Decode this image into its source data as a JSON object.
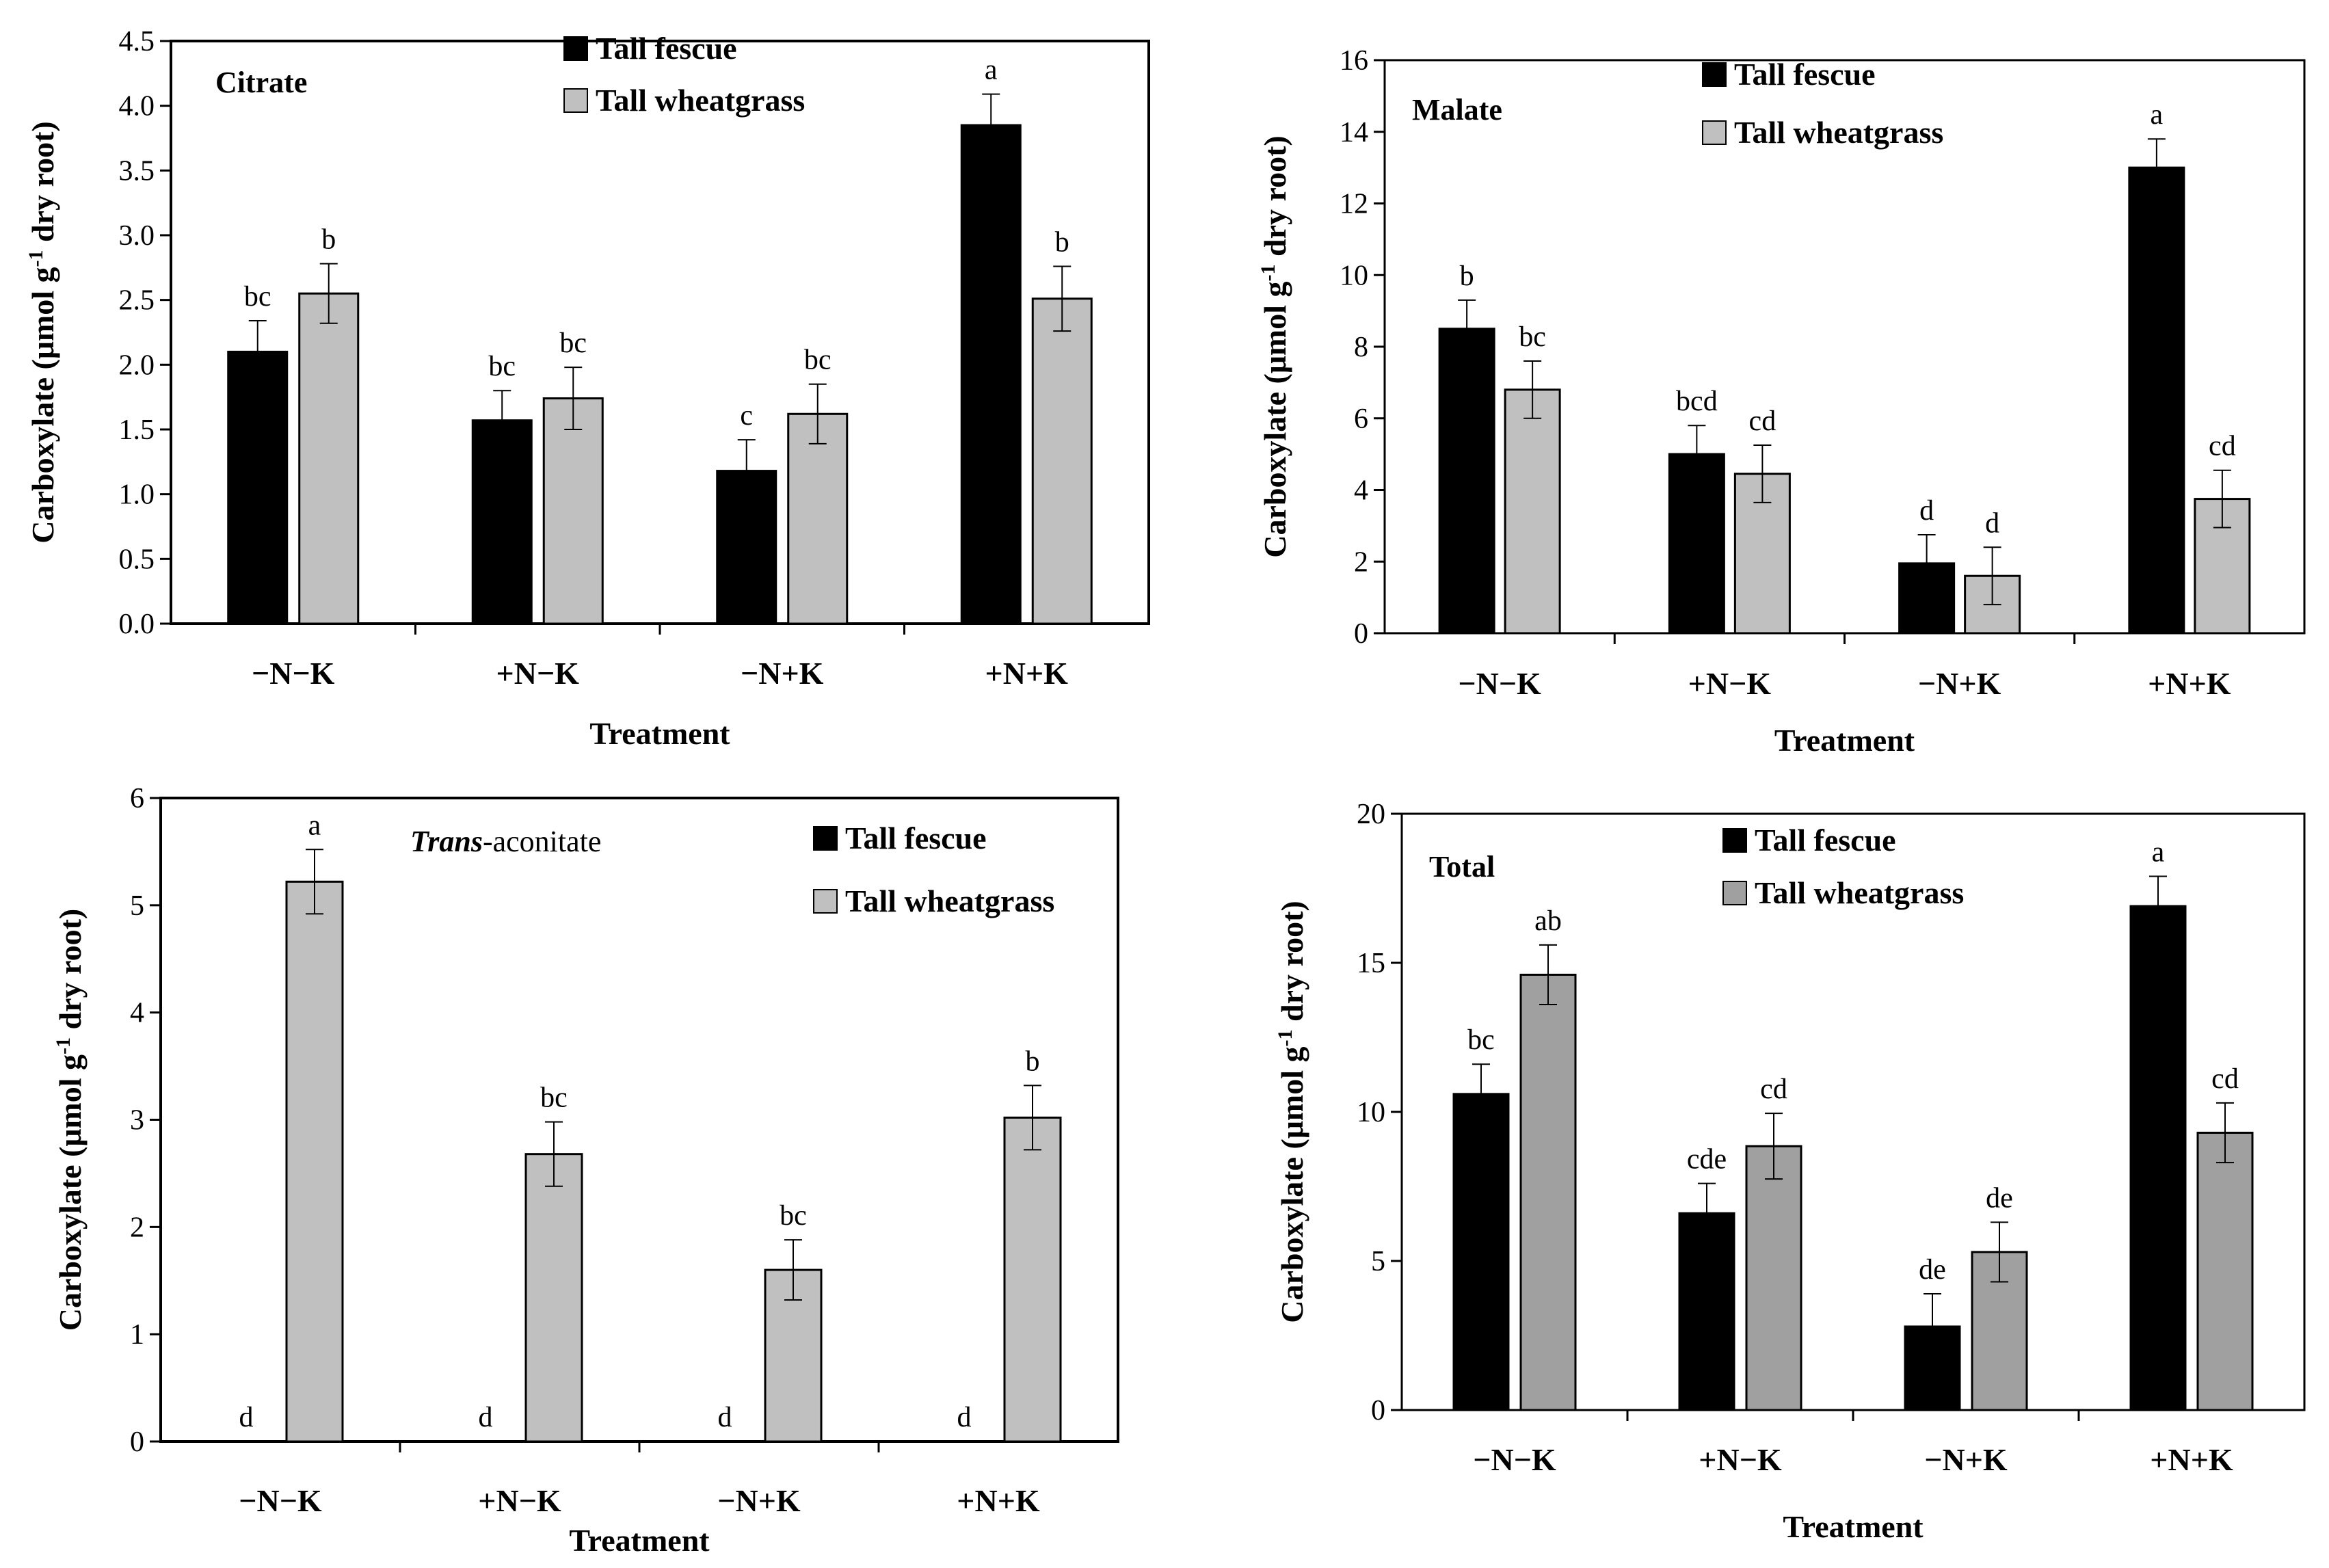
{
  "chart_data": [
    {
      "type": "bar",
      "title": "Citrate",
      "title_italic_part": "",
      "xlabel": "Treatment",
      "ylabel": "Carboxylate (μmol g-1 dry root)",
      "ylabel_parts": {
        "pre": "Carboxylate (μmol g",
        "sup": "-1",
        "post": " dry root)"
      },
      "categories": [
        "−N−K",
        "+N−K",
        "−N+K",
        "+N+K"
      ],
      "ylim": [
        0,
        4.5
      ],
      "yticks": [
        "0.0",
        "0.5",
        "1.0",
        "1.5",
        "2.0",
        "2.5",
        "3.0",
        "3.5",
        "4.0",
        "4.5"
      ],
      "legend": [
        "Tall fescue",
        "Tall wheatgrass"
      ],
      "series": [
        {
          "name": "Tall fescue",
          "color": "#000000",
          "values": [
            2.1,
            1.57,
            1.18,
            3.85
          ],
          "errors": [
            0.24,
            0.23,
            0.24,
            0.24
          ],
          "letters": [
            "bc",
            "bc",
            "c",
            "a"
          ]
        },
        {
          "name": "Tall wheatgrass",
          "color": "#c0c0c0",
          "values": [
            2.55,
            1.74,
            1.62,
            2.51
          ],
          "errors": [
            0.23,
            0.24,
            0.23,
            0.25
          ],
          "letters": [
            "b",
            "bc",
            "bc",
            "b"
          ]
        }
      ]
    },
    {
      "type": "bar",
      "title": "Malate",
      "title_italic_part": "",
      "xlabel": "Treatment",
      "ylabel": "Carboxylate (μmol g-1 dry root)",
      "ylabel_parts": {
        "pre": "Carboxylate (μmol g",
        "sup": "-1",
        "post": " dry root)"
      },
      "categories": [
        "−N−K",
        "+N−K",
        "−N+K",
        "+N+K"
      ],
      "ylim": [
        0,
        16
      ],
      "yticks": [
        "0",
        "2",
        "4",
        "6",
        "8",
        "10",
        "12",
        "14",
        "16"
      ],
      "legend": [
        "Tall fescue",
        "Tall wheatgrass"
      ],
      "series": [
        {
          "name": "Tall fescue",
          "color": "#000000",
          "values": [
            8.5,
            5.0,
            1.95,
            13.0
          ],
          "errors": [
            0.8,
            0.8,
            0.8,
            0.8
          ],
          "letters": [
            "b",
            "bcd",
            "d",
            "a"
          ]
        },
        {
          "name": "Tall wheatgrass",
          "color": "#c0c0c0",
          "values": [
            6.8,
            4.45,
            1.6,
            3.75
          ],
          "errors": [
            0.8,
            0.8,
            0.8,
            0.8
          ],
          "letters": [
            "bc",
            "cd",
            "d",
            "cd"
          ]
        }
      ]
    },
    {
      "type": "bar",
      "title": "-aconitate",
      "title_italic_part": "Trans",
      "xlabel": "Treatment",
      "ylabel": "Carboxylate (μmol g-1 dry root)",
      "ylabel_parts": {
        "pre": "Carboxylate (μmol g",
        "sup": "-1",
        "post": " dry root)"
      },
      "categories": [
        "−N−K",
        "+N−K",
        "−N+K",
        "+N+K"
      ],
      "ylim": [
        0,
        6
      ],
      "yticks": [
        "0",
        "1",
        "2",
        "3",
        "4",
        "5",
        "6"
      ],
      "legend": [
        "Tall fescue",
        "Tall wheatgrass"
      ],
      "series": [
        {
          "name": "Tall fescue",
          "color": "#000000",
          "values": [
            0,
            0,
            0,
            0
          ],
          "errors": [
            0,
            0,
            0,
            0
          ],
          "letters": [
            "d",
            "d",
            "d",
            "d"
          ]
        },
        {
          "name": "Tall wheatgrass",
          "color": "#c0c0c0",
          "values": [
            5.22,
            2.68,
            1.6,
            3.02
          ],
          "errors": [
            0.3,
            0.3,
            0.28,
            0.3
          ],
          "letters": [
            "a",
            "bc",
            "bc",
            "b"
          ]
        }
      ]
    },
    {
      "type": "bar",
      "title": "Total",
      "title_italic_part": "",
      "xlabel": "Treatment",
      "ylabel": "Carboxylate (μmol g-1 dry root)",
      "ylabel_parts": {
        "pre": "Carboxylate (μmol g",
        "sup": "-1",
        "post": " dry root)"
      },
      "categories": [
        "−N−K",
        "+N−K",
        "−N+K",
        "+N+K"
      ],
      "ylim": [
        0,
        20
      ],
      "yticks": [
        "0",
        "5",
        "10",
        "15",
        "20"
      ],
      "legend": [
        "Tall fescue",
        "Tall wheatgrass"
      ],
      "series": [
        {
          "name": "Tall fescue",
          "color": "#000000",
          "values": [
            10.6,
            6.6,
            2.8,
            16.9
          ],
          "errors": [
            1.0,
            1.0,
            1.1,
            1.0
          ],
          "letters": [
            "bc",
            "cde",
            "de",
            "a"
          ]
        },
        {
          "name": "Tall wheatgrass",
          "color": "#a0a0a0",
          "values": [
            14.6,
            8.85,
            5.3,
            9.3
          ],
          "errors": [
            1.0,
            1.1,
            1.0,
            1.0
          ],
          "letters": [
            "ab",
            "cd",
            "de",
            "cd"
          ]
        }
      ]
    }
  ]
}
